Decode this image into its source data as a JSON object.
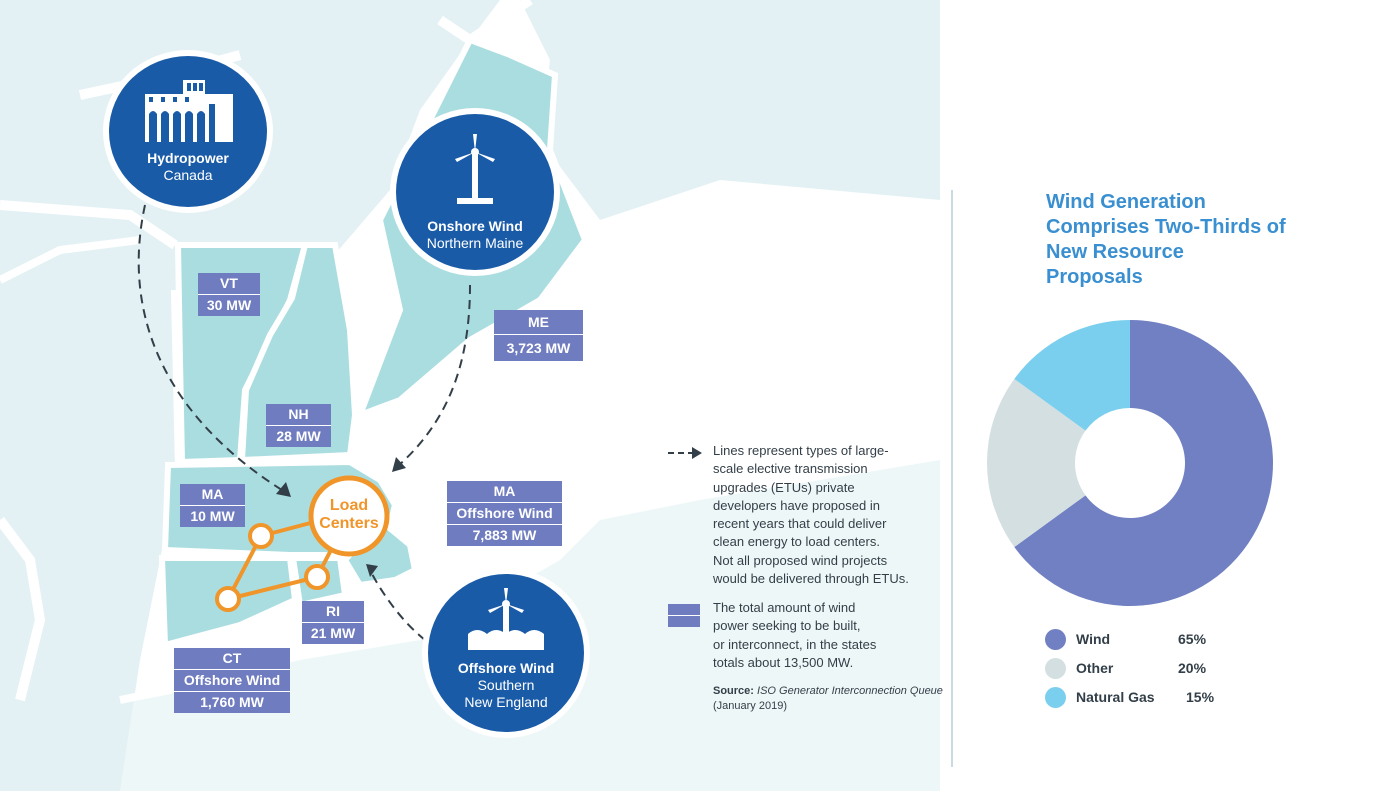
{
  "map": {
    "sources": {
      "hydro": {
        "title": "Hydropower",
        "subtitle": "Canada"
      },
      "onshore": {
        "title": "Onshore Wind",
        "subtitle": "Northern Maine"
      },
      "offshore": {
        "title": "Offshore Wind",
        "subtitle1": "Southern",
        "subtitle2": "New England"
      }
    },
    "load_centers": {
      "line1": "Load",
      "line2": "Centers"
    },
    "states": [
      {
        "state": "VT",
        "value": "30 MW"
      },
      {
        "state": "ME",
        "value": "3,723 MW"
      },
      {
        "state": "NH",
        "value": "28 MW"
      },
      {
        "state": "MA",
        "value": "10 MW"
      },
      {
        "state": "MA",
        "sub": "Offshore Wind",
        "value": "7,883 MW"
      },
      {
        "state": "RI",
        "value": "21 MW"
      },
      {
        "state": "CT",
        "sub": "Offshore Wind",
        "value": "1,760 MW"
      }
    ],
    "colors": {
      "land": "#aadde0",
      "land_bg": "#e3f1f4",
      "circle": "#1a5ba8",
      "tag": "#6f7cbf",
      "load": "#f0952a"
    }
  },
  "legend": {
    "lines_text": [
      "Lines represent types of large-",
      "scale elective transmission",
      "upgrades (ETUs) private",
      "developers have proposed in",
      "recent years that could deliver",
      "clean energy to load centers.",
      "Not all proposed wind projects",
      "would be delivered through ETUs."
    ],
    "mw_text": [
      "The total amount of wind",
      "power seeking to be built,",
      "or interconnect, in the states",
      "totals about 13,500 MW."
    ],
    "source_label": "Source:",
    "source_text": "ISO Generator Interconnection Queue",
    "source_date": "(January 2019)"
  },
  "chart_data": {
    "type": "pie",
    "title": "Wind Generation Comprises Two-Thirds of New Resource Proposals",
    "categories": [
      "Wind",
      "Other",
      "Natural Gas"
    ],
    "values": [
      65,
      20,
      15
    ],
    "labels": [
      "65%",
      "20%",
      "15%"
    ],
    "colors": [
      "#7180c2",
      "#d3dfe1",
      "#7bcfee"
    ],
    "donut": true
  }
}
